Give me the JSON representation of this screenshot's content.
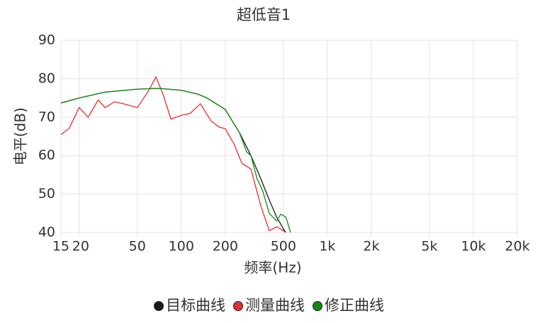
{
  "chart_data": {
    "type": "line",
    "title": "超低音1",
    "x_label": "频率(Hz)",
    "y_label": "电平(dB)",
    "xscale": "log",
    "grid": true,
    "xlim": [
      15,
      20000
    ],
    "ylim": [
      40,
      90
    ],
    "xticks": [
      15,
      20,
      50,
      100,
      200,
      500,
      {
        "value": 1000,
        "label": "1k"
      },
      {
        "value": 2000,
        "label": "2k"
      },
      {
        "value": 5000,
        "label": "5k"
      },
      {
        "value": 10000,
        "label": "10k"
      },
      {
        "value": 20000,
        "label": "20k"
      }
    ],
    "yticks": [
      40,
      50,
      60,
      70,
      80,
      90
    ],
    "series": [
      {
        "name": "目标曲线",
        "color": "#1a1a1a",
        "x": [
          15,
          20,
          30,
          50,
          70,
          100,
          130,
          150,
          200,
          250,
          300,
          350,
          400,
          450,
          500,
          520
        ],
        "values": [
          73.7,
          75,
          76.5,
          77.3,
          77.5,
          77,
          76,
          75,
          72,
          66,
          60,
          54,
          48.5,
          44,
          41,
          40
        ]
      },
      {
        "name": "测量曲线",
        "color": "#e03030",
        "x": [
          15,
          17,
          20,
          23,
          27,
          30,
          35,
          40,
          50,
          60,
          67,
          75,
          85,
          100,
          115,
          135,
          160,
          180,
          200,
          230,
          260,
          300,
          350,
          400,
          450,
          500,
          520
        ],
        "values": [
          65.5,
          67,
          72.5,
          70,
          74.5,
          72.5,
          74,
          73.5,
          72.5,
          77,
          80.5,
          76,
          69.5,
          70.5,
          71,
          73.5,
          69,
          67.5,
          67,
          63,
          58,
          56.5,
          47,
          40.5,
          41.5,
          40.5,
          40
        ]
      },
      {
        "name": "修正曲线",
        "color": "#128a12",
        "x": [
          15,
          20,
          30,
          50,
          70,
          100,
          130,
          150,
          200,
          250,
          280,
          300,
          330,
          360,
          400,
          450,
          480,
          520,
          560
        ],
        "values": [
          73.7,
          75,
          76.5,
          77.3,
          77.5,
          77,
          76,
          75,
          72,
          66,
          61,
          60,
          54,
          51,
          45,
          43,
          44.8,
          44,
          40
        ]
      }
    ]
  }
}
